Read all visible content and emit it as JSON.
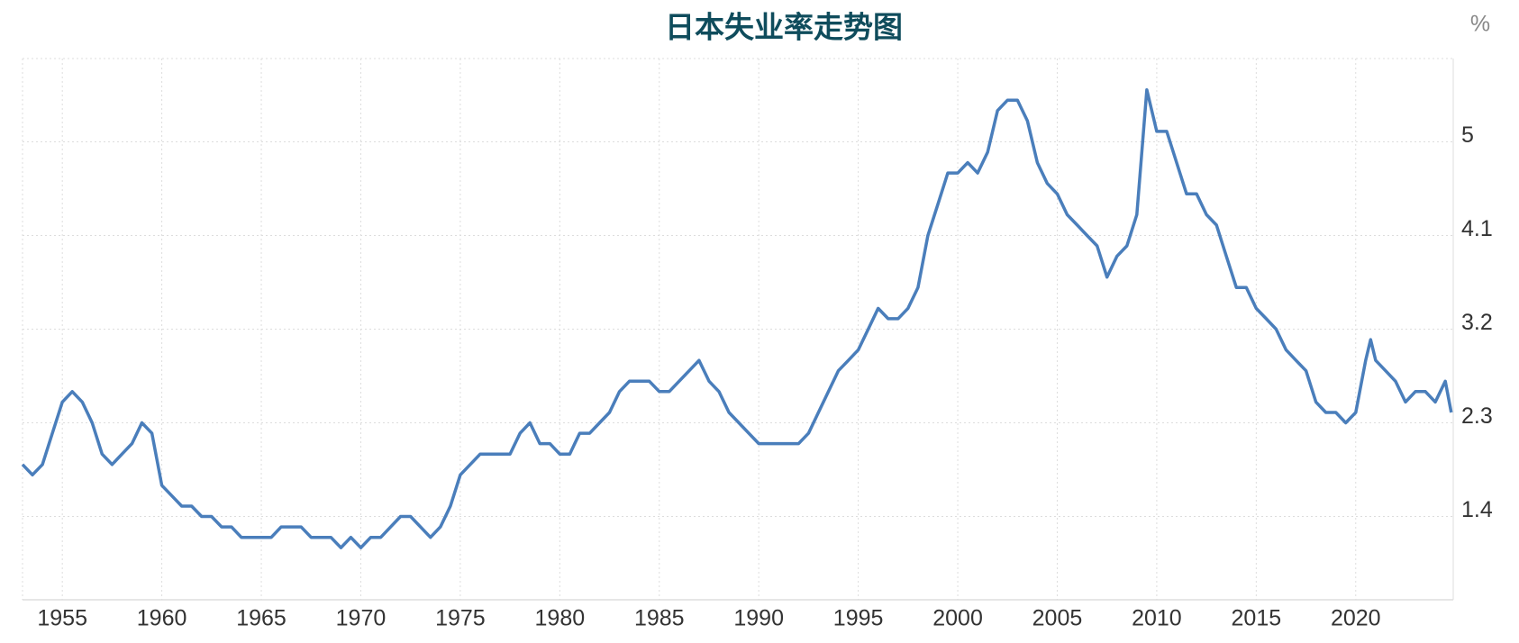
{
  "chart_data": {
    "type": "line",
    "title": "日本失业率走势图",
    "unit": "%",
    "x": [
      1953,
      1953.5,
      1954,
      1954.5,
      1955,
      1955.5,
      1956,
      1956.5,
      1957,
      1957.5,
      1958,
      1958.5,
      1959,
      1959.5,
      1960,
      1960.5,
      1961,
      1961.5,
      1962,
      1962.5,
      1963,
      1963.5,
      1964,
      1964.5,
      1965,
      1965.5,
      1966,
      1966.5,
      1967,
      1967.5,
      1968,
      1968.5,
      1969,
      1969.5,
      1970,
      1970.5,
      1971,
      1971.5,
      1972,
      1972.5,
      1973,
      1973.5,
      1974,
      1974.5,
      1975,
      1975.5,
      1976,
      1976.5,
      1977,
      1977.5,
      1978,
      1978.5,
      1979,
      1979.5,
      1980,
      1980.5,
      1981,
      1981.5,
      1982,
      1982.5,
      1983,
      1983.5,
      1984,
      1984.5,
      1985,
      1985.5,
      1986,
      1986.5,
      1987,
      1987.5,
      1988,
      1988.5,
      1989,
      1989.5,
      1990,
      1990.5,
      1991,
      1991.5,
      1992,
      1992.5,
      1993,
      1993.5,
      1994,
      1994.5,
      1995,
      1995.5,
      1996,
      1996.5,
      1997,
      1997.5,
      1998,
      1998.5,
      1999,
      1999.5,
      2000,
      2000.5,
      2001,
      2001.5,
      2002,
      2002.5,
      2003,
      2003.5,
      2004,
      2004.5,
      2005,
      2005.5,
      2006,
      2006.5,
      2007,
      2007.5,
      2008,
      2008.5,
      2009,
      2009.5,
      2010,
      2010.5,
      2011,
      2011.5,
      2012,
      2012.5,
      2013,
      2013.5,
      2014,
      2014.5,
      2015,
      2015.5,
      2016,
      2016.5,
      2017,
      2017.5,
      2018,
      2018.5,
      2019,
      2019.5,
      2020,
      2020.5,
      2020.75,
      2021,
      2021.5,
      2022,
      2022.5,
      2023,
      2023.5,
      2024,
      2024.5,
      2024.8
    ],
    "series": [
      {
        "name": "失业率",
        "color": "#4a7ebb",
        "values": [
          1.9,
          1.8,
          1.9,
          2.2,
          2.5,
          2.6,
          2.5,
          2.3,
          2.0,
          1.9,
          2.0,
          2.1,
          2.3,
          2.2,
          1.7,
          1.6,
          1.5,
          1.5,
          1.4,
          1.4,
          1.3,
          1.3,
          1.2,
          1.2,
          1.2,
          1.2,
          1.3,
          1.3,
          1.3,
          1.2,
          1.2,
          1.2,
          1.1,
          1.2,
          1.1,
          1.2,
          1.2,
          1.3,
          1.4,
          1.4,
          1.3,
          1.2,
          1.3,
          1.5,
          1.8,
          1.9,
          2.0,
          2.0,
          2.0,
          2.0,
          2.2,
          2.3,
          2.1,
          2.1,
          2.0,
          2.0,
          2.2,
          2.2,
          2.3,
          2.4,
          2.6,
          2.7,
          2.7,
          2.7,
          2.6,
          2.6,
          2.7,
          2.8,
          2.9,
          2.7,
          2.6,
          2.4,
          2.3,
          2.2,
          2.1,
          2.1,
          2.1,
          2.1,
          2.1,
          2.2,
          2.4,
          2.6,
          2.8,
          2.9,
          3.0,
          3.2,
          3.4,
          3.3,
          3.3,
          3.4,
          3.6,
          4.1,
          4.4,
          4.7,
          4.7,
          4.8,
          4.7,
          4.9,
          5.3,
          5.4,
          5.4,
          5.2,
          4.8,
          4.6,
          4.5,
          4.3,
          4.2,
          4.1,
          4.0,
          3.7,
          3.9,
          4.0,
          4.3,
          5.5,
          5.1,
          5.1,
          4.8,
          4.5,
          4.5,
          4.3,
          4.2,
          3.9,
          3.6,
          3.6,
          3.4,
          3.3,
          3.2,
          3.0,
          2.9,
          2.8,
          2.5,
          2.4,
          2.4,
          2.3,
          2.4,
          2.9,
          3.1,
          2.9,
          2.8,
          2.7,
          2.5,
          2.6,
          2.6,
          2.5,
          2.7,
          2.4
        ]
      }
    ],
    "xlim": [
      1953,
      2024.9
    ],
    "ylim": [
      0.6,
      5.8
    ],
    "xticks": [
      1955,
      1960,
      1965,
      1970,
      1975,
      1980,
      1985,
      1990,
      1995,
      2000,
      2005,
      2010,
      2015,
      2020
    ],
    "yticks": [
      1.4,
      2.3,
      3.2,
      4.1,
      5.0
    ],
    "grid": true
  }
}
